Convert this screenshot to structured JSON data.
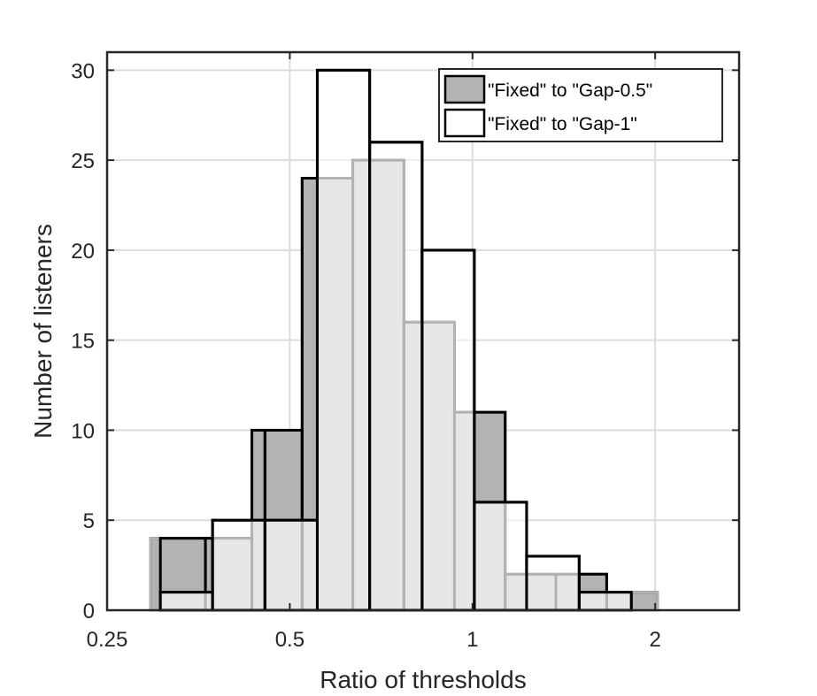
{
  "chart_data": {
    "type": "bar",
    "xscale": "log2",
    "xlabel": "Ratio of thresholds",
    "ylabel": "Number of listeners",
    "xlim": [
      0.25,
      2.75
    ],
    "ylim": [
      0,
      31
    ],
    "xticks": [
      0.25,
      0.5,
      1,
      2
    ],
    "xtick_labels": [
      "0.25",
      "0.5",
      "1",
      "2"
    ],
    "yticks": [
      0,
      5,
      10,
      15,
      20,
      25,
      30
    ],
    "ytick_labels": [
      "0",
      "5",
      "10",
      "15",
      "20",
      "25",
      "30"
    ],
    "grid": true,
    "legend_position": "top-right",
    "series": [
      {
        "name": "\"Fixed\" to \"Gap-0.5\"",
        "color": "#b3b3b3",
        "bins": [
          {
            "x0": 0.295,
            "x1": 0.363,
            "value": 4
          },
          {
            "x0": 0.363,
            "x1": 0.433,
            "value": 4
          },
          {
            "x0": 0.433,
            "x1": 0.524,
            "value": 10
          },
          {
            "x0": 0.524,
            "x1": 0.635,
            "value": 24
          },
          {
            "x0": 0.635,
            "x1": 0.771,
            "value": 25
          },
          {
            "x0": 0.771,
            "x1": 0.934,
            "value": 16
          },
          {
            "x0": 0.934,
            "x1": 1.132,
            "value": 11
          },
          {
            "x0": 1.132,
            "x1": 1.372,
            "value": 2
          },
          {
            "x0": 1.372,
            "x1": 1.664,
            "value": 2
          },
          {
            "x0": 1.664,
            "x1": 2.017,
            "value": 1
          }
        ]
      },
      {
        "name": "\"Fixed\" to \"Gap-1\"",
        "color": "#ffffff",
        "bins": [
          {
            "x0": 0.306,
            "x1": 0.373,
            "value": 1
          },
          {
            "x0": 0.373,
            "x1": 0.455,
            "value": 5
          },
          {
            "x0": 0.455,
            "x1": 0.555,
            "value": 5
          },
          {
            "x0": 0.555,
            "x1": 0.677,
            "value": 30
          },
          {
            "x0": 0.677,
            "x1": 0.826,
            "value": 26
          },
          {
            "x0": 0.826,
            "x1": 1.007,
            "value": 20
          },
          {
            "x0": 1.007,
            "x1": 1.228,
            "value": 6
          },
          {
            "x0": 1.228,
            "x1": 1.499,
            "value": 3
          },
          {
            "x0": 1.499,
            "x1": 1.827,
            "value": 1
          }
        ]
      }
    ]
  }
}
